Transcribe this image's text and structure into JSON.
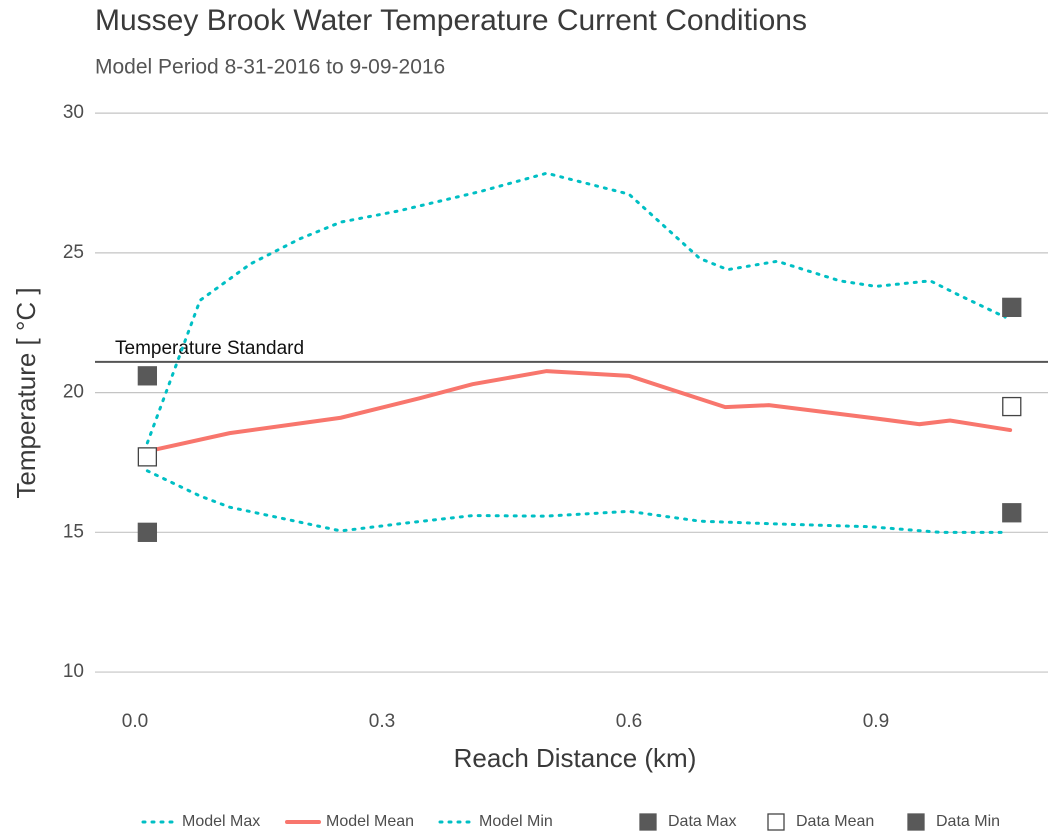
{
  "chart_data": {
    "type": "line",
    "title": "Mussey Brook Water Temperature Current Conditions",
    "subtitle": "Model Period 8-31-2016 to 9-09-2016",
    "x_label": "Reach Distance (km)",
    "y_label": "Temperature [ °C ]",
    "xlim": [
      -0.0486,
      1.109
    ],
    "ylim": [
      9,
      30.47
    ],
    "xticks": [
      {
        "value": 0,
        "label": "0.0"
      },
      0.3,
      0.6,
      0.9
    ],
    "yticks": [
      10,
      15,
      20,
      25,
      30
    ],
    "grid": "y",
    "legend": "bottom",
    "hline": {
      "value": 21.1,
      "label": "Temperature Standard",
      "color": "#555555"
    },
    "series": [
      {
        "name": "Model Max",
        "color": "#00BFC4",
        "mark": "dotted",
        "x": [
          0.015,
          0.079,
          0.14,
          0.2,
          0.25,
          0.32,
          0.42,
          0.5,
          0.6,
          0.686,
          0.72,
          0.78,
          0.856,
          0.9,
          0.966,
          1.0,
          1.057
        ],
        "values": [
          18.2,
          23.3,
          24.6,
          25.5,
          26.1,
          26.5,
          27.2,
          27.85,
          27.1,
          24.8,
          24.4,
          24.7,
          24.0,
          23.8,
          24.0,
          23.5,
          22.7
        ]
      },
      {
        "name": "Model Mean",
        "color": "#F8766D",
        "mark": "solid",
        "x": [
          0.015,
          0.115,
          0.25,
          0.346,
          0.41,
          0.5,
          0.6,
          0.717,
          0.77,
          0.893,
          0.953,
          0.99,
          1.063
        ],
        "values": [
          17.9,
          18.55,
          19.1,
          19.8,
          20.3,
          20.77,
          20.6,
          19.48,
          19.55,
          19.1,
          18.87,
          19.0,
          18.66
        ]
      },
      {
        "name": "Model Min",
        "color": "#00BFC4",
        "mark": "dotted",
        "x": [
          0.015,
          0.079,
          0.115,
          0.25,
          0.32,
          0.41,
          0.5,
          0.6,
          0.686,
          0.78,
          0.893,
          0.978,
          1.057
        ],
        "values": [
          17.2,
          16.3,
          15.9,
          15.05,
          15.3,
          15.6,
          15.58,
          15.75,
          15.4,
          15.3,
          15.2,
          15.0,
          15.0
        ]
      },
      {
        "name": "Data Max",
        "color": "#595959",
        "mark": "square-filled",
        "x": [
          0.015,
          1.065
        ],
        "values": [
          20.6,
          23.05
        ]
      },
      {
        "name": "Data Mean",
        "color": "#595959",
        "mark": "square-open",
        "x": [
          0.015,
          1.065
        ],
        "values": [
          17.7,
          19.5
        ]
      },
      {
        "name": "Data Min",
        "color": "#595959",
        "mark": "square-filled",
        "x": [
          0.015,
          1.065
        ],
        "values": [
          15.0,
          15.7
        ]
      }
    ]
  }
}
